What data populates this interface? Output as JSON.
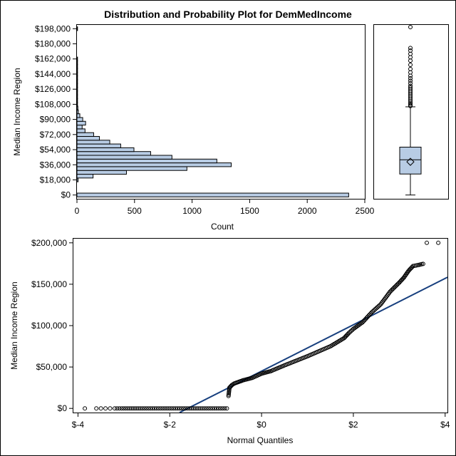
{
  "title": "Distribution and Probability Plot for DemMedIncome",
  "colors": {
    "bar_fill": "#b8cce4",
    "box_fill": "#b8cce4",
    "fit_line": "#173f7e",
    "outline": "#000000"
  },
  "chart_data": [
    {
      "type": "bar",
      "orientation": "horizontal",
      "xlabel": "Count",
      "ylabel": "Median Income Region",
      "xlim": [
        0,
        2500
      ],
      "x_ticks": [
        0,
        500,
        1000,
        1500,
        2000,
        2500
      ],
      "x_tick_labels": [
        "0",
        "500",
        "1000",
        "1500",
        "2000",
        "2500"
      ],
      "ylim": [
        -4500,
        202500
      ],
      "y_ticks": [
        0,
        18000,
        36000,
        54000,
        72000,
        90000,
        108000,
        126000,
        144000,
        162000,
        180000,
        198000
      ],
      "y_tick_labels": [
        "$0",
        "$18,000",
        "$36,000",
        "$54,000",
        "$72,000",
        "$90,000",
        "$108,000",
        "$126,000",
        "$144,000",
        "$162,000",
        "$180,000",
        "$198,000"
      ],
      "bin_width": 4500,
      "bin_centers": [
        0,
        18000,
        22500,
        27000,
        31500,
        36000,
        40500,
        45000,
        49500,
        54000,
        58500,
        63000,
        67500,
        72000,
        76500,
        81000,
        85500,
        90000,
        94500,
        99000,
        103500,
        108000,
        112500,
        117000,
        121500,
        126000,
        130500,
        135000,
        139500,
        144000,
        148500,
        153000,
        157500,
        162000,
        166500,
        171000,
        175500,
        180000,
        184500,
        189000,
        193500,
        198000
      ],
      "counts": [
        2360,
        10,
        140,
        430,
        955,
        1340,
        1215,
        825,
        640,
        495,
        380,
        285,
        195,
        145,
        70,
        45,
        75,
        50,
        25,
        12,
        8,
        5,
        4,
        3,
        2,
        2,
        2,
        2,
        1,
        1,
        1,
        1,
        1,
        1,
        0,
        0,
        0,
        0,
        0,
        0,
        0,
        1
      ]
    },
    {
      "type": "box",
      "orientation": "vertical",
      "ylim": [
        -4500,
        202500
      ],
      "min": 0,
      "q1": 25000,
      "median": 42000,
      "q3": 57000,
      "mean": 39500,
      "whisker_low": 0,
      "whisker_high": 105000,
      "outliers": [
        106000,
        107000,
        108500,
        110000,
        112000,
        114000,
        116000,
        118000,
        120000,
        122000,
        124000,
        126000,
        128000,
        130000,
        133000,
        136000,
        139000,
        142000,
        146000,
        150000,
        155000,
        160000,
        164000,
        168000,
        172000,
        175000,
        200000
      ]
    },
    {
      "type": "scatter",
      "xlabel": "Normal Quantiles",
      "ylabel": "Median Income Region",
      "xlim": [
        -4.1,
        4.05
      ],
      "x_ticks": [
        -4,
        -2,
        0,
        2,
        4
      ],
      "x_tick_labels": [
        "$-4",
        "$-2",
        "$0",
        "$2",
        "$4"
      ],
      "ylim": [
        -5000,
        205000
      ],
      "y_ticks": [
        0,
        50000,
        100000,
        150000,
        200000
      ],
      "y_tick_labels": [
        "$0",
        "$50,000",
        "$100,000",
        "$150,000",
        "$200,000"
      ],
      "reference_line": {
        "intercept": 45000,
        "slope": 28000
      },
      "zero_points_x": [
        -3.85,
        -3.6,
        -3.5,
        -3.4,
        -3.3,
        -3.2,
        -3.15,
        -3.1
      ],
      "zero_run_x": [
        -3.05,
        -0.72
      ],
      "quantile_curve": [
        [
          -0.72,
          15000
        ],
        [
          -0.7,
          25000
        ],
        [
          -0.65,
          28000
        ],
        [
          -0.6,
          30000
        ],
        [
          -0.5,
          32000
        ],
        [
          -0.4,
          34000
        ],
        [
          -0.2,
          37000
        ],
        [
          0.0,
          42000
        ],
        [
          0.2,
          45000
        ],
        [
          0.5,
          52000
        ],
        [
          1.0,
          63000
        ],
        [
          1.5,
          75000
        ],
        [
          1.8,
          85000
        ],
        [
          1.9,
          91000
        ],
        [
          2.0,
          96000
        ],
        [
          2.2,
          104000
        ],
        [
          2.4,
          116000
        ],
        [
          2.6,
          126000
        ],
        [
          2.8,
          141000
        ],
        [
          3.0,
          152000
        ],
        [
          3.1,
          158000
        ],
        [
          3.2,
          166000
        ],
        [
          3.3,
          172000
        ],
        [
          3.4,
          173000
        ],
        [
          3.55,
          175000
        ]
      ],
      "top_points": [
        [
          3.6,
          200000
        ],
        [
          3.85,
          200000
        ]
      ]
    }
  ]
}
